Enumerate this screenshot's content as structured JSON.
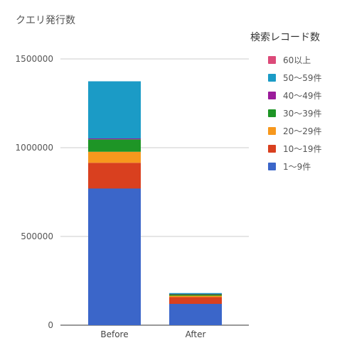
{
  "chart_data": {
    "type": "bar",
    "stacked": true,
    "title": "クエリ発行数",
    "legend_title": "検索レコード数",
    "legend_position": "right",
    "categories": [
      "Before",
      "After"
    ],
    "yticks": [
      "0",
      "500000",
      "1000000",
      "1500000"
    ],
    "ylim": [
      0,
      1500000
    ],
    "grid": true,
    "series": [
      {
        "name": "1〜9件",
        "color": "#3b66c9",
        "values": [
          770000,
          120000
        ]
      },
      {
        "name": "10〜19件",
        "color": "#d9401f",
        "values": [
          145000,
          38000
        ]
      },
      {
        "name": "20〜29件",
        "color": "#f7981d",
        "values": [
          62000,
          8000
        ]
      },
      {
        "name": "30〜39件",
        "color": "#1e9526",
        "values": [
          70000,
          9000
        ]
      },
      {
        "name": "40〜49件",
        "color": "#9b1c9b",
        "values": [
          5000,
          1000
        ]
      },
      {
        "name": "50〜59件",
        "color": "#1b9bc6",
        "values": [
          322000,
          5000
        ]
      },
      {
        "name": "60以上",
        "color": "#dc4a79",
        "values": [
          0,
          0
        ]
      }
    ]
  }
}
